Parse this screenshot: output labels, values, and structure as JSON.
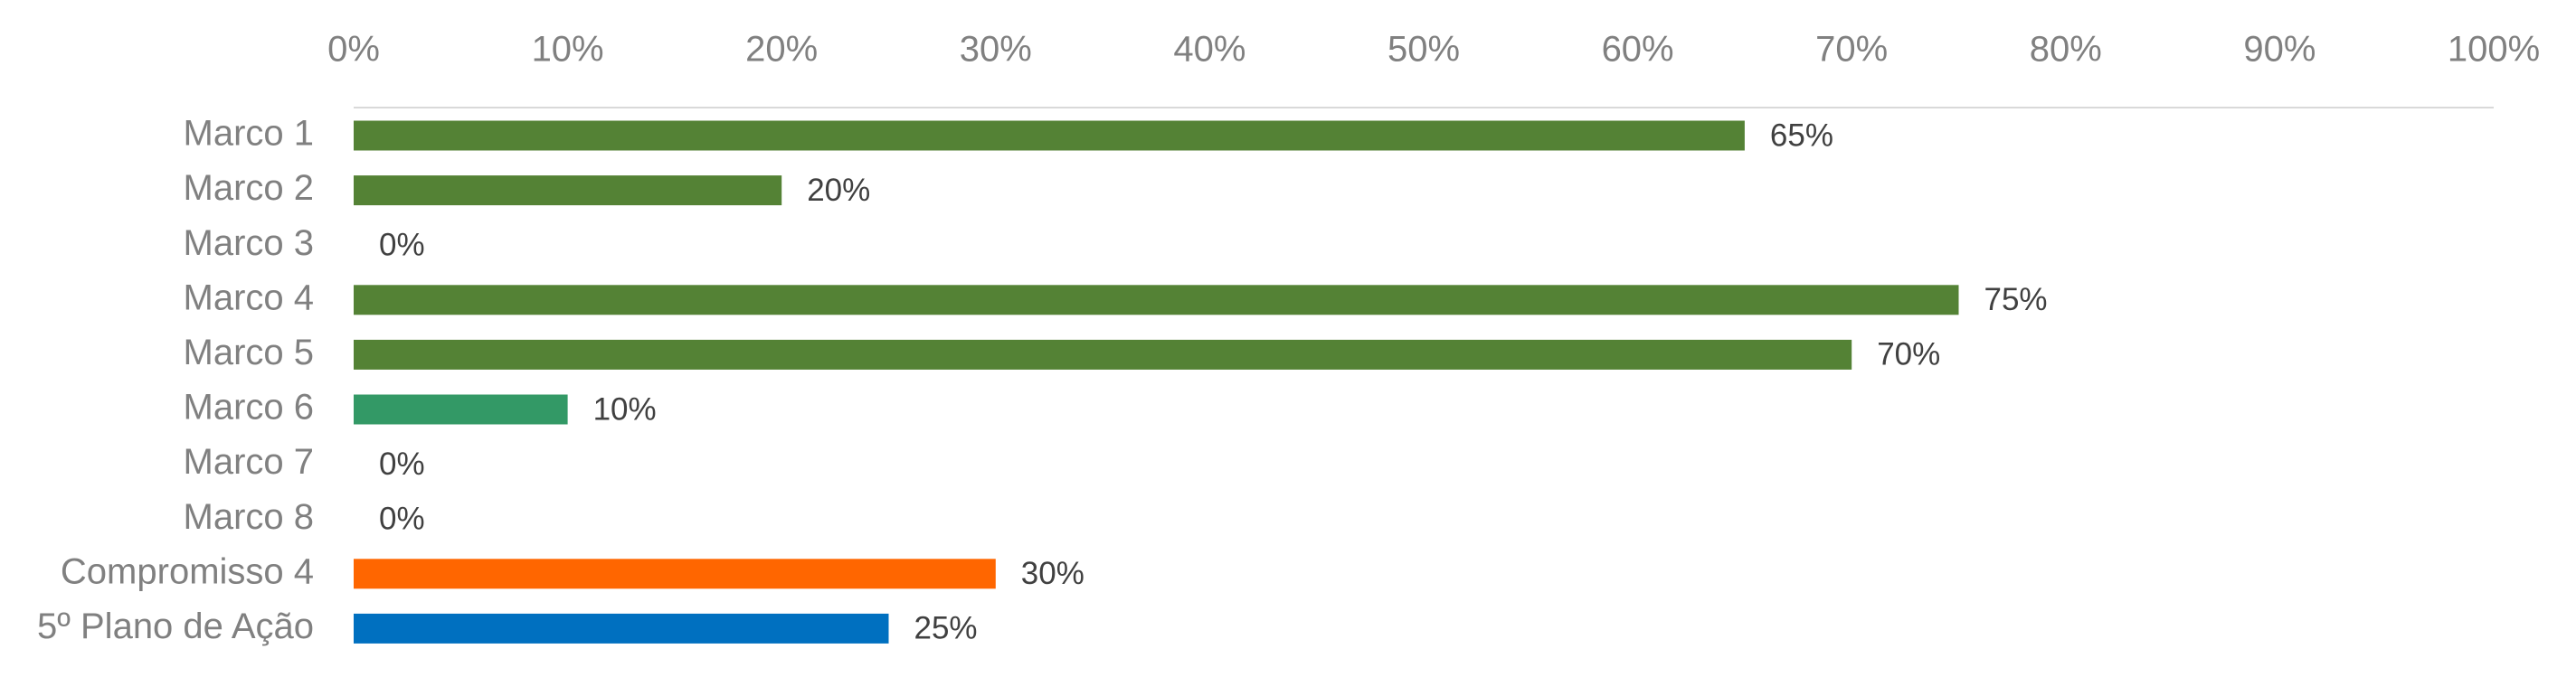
{
  "chart_data": {
    "type": "barh",
    "categories": [
      "Marco 1",
      "Marco 2",
      "Marco 3",
      "Marco 4",
      "Marco 5",
      "Marco 6",
      "Marco 7",
      "Marco 8",
      "Compromisso 4",
      "5º Plano de Ação"
    ],
    "values": [
      65,
      20,
      0,
      75,
      70,
      10,
      0,
      0,
      30,
      25
    ],
    "value_labels": [
      "65%",
      "20%",
      "0%",
      "75%",
      "70%",
      "10%",
      "0%",
      "0%",
      "30%",
      "25%"
    ],
    "colors": [
      "#548235",
      "#548235",
      "#548235",
      "#548235",
      "#548235",
      "#339966",
      "#548235",
      "#548235",
      "#ff6600",
      "#0070c0"
    ],
    "xlim": [
      0,
      100
    ],
    "xticks": [
      {
        "value": 0,
        "label": "0%"
      },
      {
        "value": 10,
        "label": "10%"
      },
      {
        "value": 20,
        "label": "20%"
      },
      {
        "value": 30,
        "label": "30%"
      },
      {
        "value": 40,
        "label": "40%"
      },
      {
        "value": 50,
        "label": "50%"
      },
      {
        "value": 60,
        "label": "60%"
      },
      {
        "value": 70,
        "label": "70%"
      },
      {
        "value": 80,
        "label": "80%"
      },
      {
        "value": 90,
        "label": "90%"
      },
      {
        "value": 100,
        "label": "100%"
      }
    ]
  }
}
